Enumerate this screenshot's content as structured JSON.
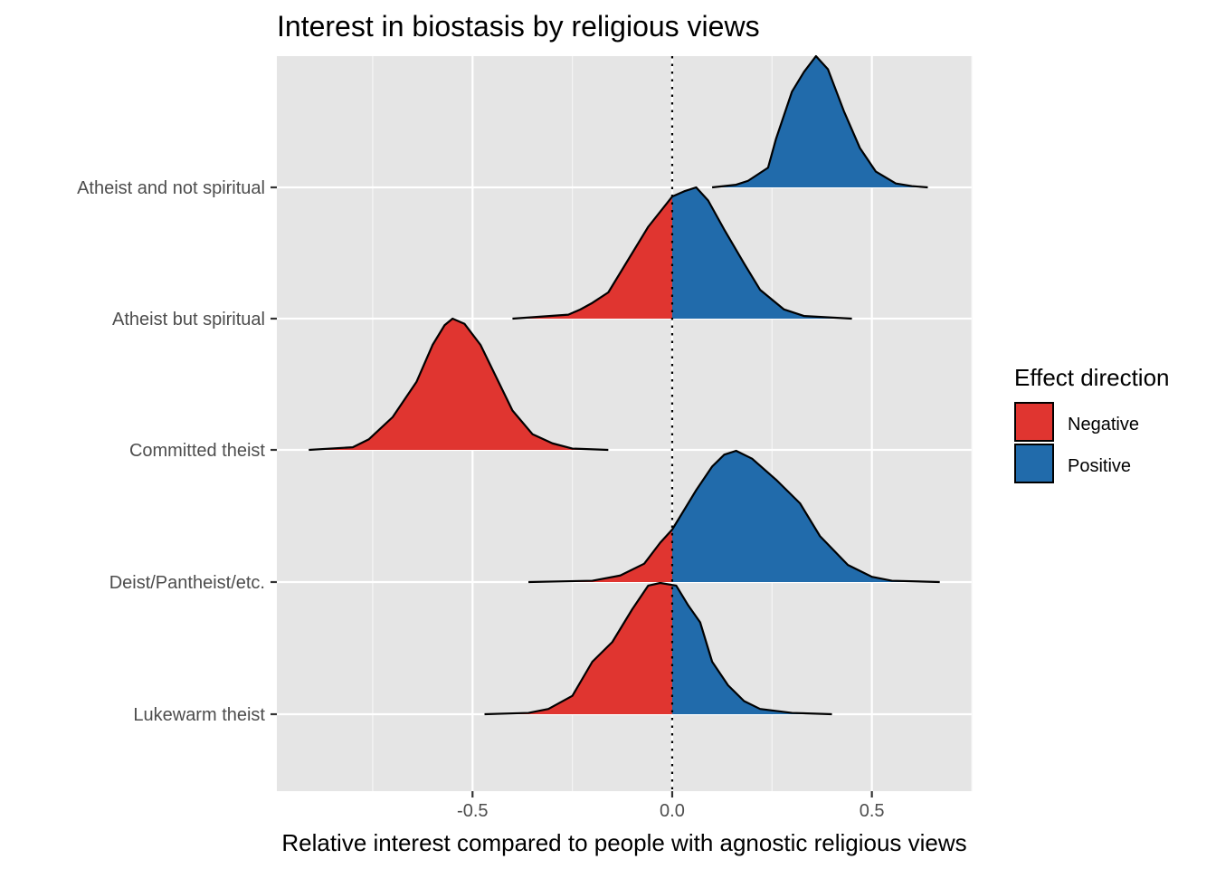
{
  "chart_data": {
    "type": "ridgeline",
    "title": "Interest in biostasis by religious views",
    "xlabel": "Relative interest compared to people with agnostic religious views",
    "ylabel": "",
    "xlim": [
      -0.99,
      0.75
    ],
    "xticks": [
      -0.5,
      0.0,
      0.5
    ],
    "xtick_labels": [
      "-0.5",
      "0.0",
      "0.5"
    ],
    "reference_line": {
      "x": 0.0,
      "style": "dotted"
    },
    "grid": true,
    "legend": {
      "title": "Effect direction",
      "placement": "right",
      "entries": [
        {
          "label": "Negative",
          "color": "#E03530"
        },
        {
          "label": "Positive",
          "color": "#216BAB"
        }
      ]
    },
    "colors": {
      "negative": "#E03530",
      "positive": "#216BAB",
      "panel": "#E5E5E5",
      "grid": "#FFFFFF"
    },
    "series": [
      {
        "name": "Lukewarm theist",
        "curve": [
          [
            -0.47,
            0.0
          ],
          [
            -0.36,
            0.01
          ],
          [
            -0.31,
            0.04
          ],
          [
            -0.25,
            0.14
          ],
          [
            -0.2,
            0.4
          ],
          [
            -0.15,
            0.55
          ],
          [
            -0.1,
            0.8
          ],
          [
            -0.06,
            0.98
          ],
          [
            -0.03,
            1.0
          ],
          [
            0.01,
            0.98
          ],
          [
            0.04,
            0.83
          ],
          [
            0.07,
            0.7
          ],
          [
            0.1,
            0.4
          ],
          [
            0.14,
            0.22
          ],
          [
            0.18,
            0.1
          ],
          [
            0.22,
            0.04
          ],
          [
            0.3,
            0.01
          ],
          [
            0.4,
            0.0
          ]
        ]
      },
      {
        "name": "Deist/Pantheist/etc.",
        "curve": [
          [
            -0.36,
            0.0
          ],
          [
            -0.2,
            0.01
          ],
          [
            -0.13,
            0.05
          ],
          [
            -0.07,
            0.14
          ],
          [
            -0.03,
            0.3
          ],
          [
            0.0,
            0.4
          ],
          [
            0.06,
            0.7
          ],
          [
            0.1,
            0.88
          ],
          [
            0.13,
            0.97
          ],
          [
            0.16,
            1.0
          ],
          [
            0.2,
            0.94
          ],
          [
            0.26,
            0.78
          ],
          [
            0.32,
            0.6
          ],
          [
            0.37,
            0.35
          ],
          [
            0.44,
            0.13
          ],
          [
            0.5,
            0.04
          ],
          [
            0.55,
            0.01
          ],
          [
            0.67,
            0.0
          ]
        ]
      },
      {
        "name": "Committed theist",
        "curve": [
          [
            -0.91,
            0.0
          ],
          [
            -0.8,
            0.02
          ],
          [
            -0.76,
            0.08
          ],
          [
            -0.7,
            0.25
          ],
          [
            -0.64,
            0.52
          ],
          [
            -0.6,
            0.8
          ],
          [
            -0.57,
            0.95
          ],
          [
            -0.55,
            1.0
          ],
          [
            -0.52,
            0.96
          ],
          [
            -0.48,
            0.8
          ],
          [
            -0.44,
            0.55
          ],
          [
            -0.4,
            0.3
          ],
          [
            -0.35,
            0.12
          ],
          [
            -0.3,
            0.05
          ],
          [
            -0.25,
            0.01
          ],
          [
            -0.16,
            0.0
          ]
        ]
      },
      {
        "name": "Atheist but spiritual",
        "curve": [
          [
            -0.4,
            0.0
          ],
          [
            -0.26,
            0.03
          ],
          [
            -0.23,
            0.07
          ],
          [
            -0.2,
            0.12
          ],
          [
            -0.16,
            0.2
          ],
          [
            -0.12,
            0.4
          ],
          [
            -0.06,
            0.7
          ],
          [
            0.0,
            0.93
          ],
          [
            0.03,
            0.97
          ],
          [
            0.06,
            1.0
          ],
          [
            0.09,
            0.9
          ],
          [
            0.13,
            0.68
          ],
          [
            0.18,
            0.42
          ],
          [
            0.22,
            0.22
          ],
          [
            0.28,
            0.07
          ],
          [
            0.33,
            0.02
          ],
          [
            0.45,
            0.0
          ]
        ]
      },
      {
        "name": "Atheist and not spiritual",
        "curve": [
          [
            0.1,
            0.0
          ],
          [
            0.16,
            0.02
          ],
          [
            0.19,
            0.05
          ],
          [
            0.24,
            0.15
          ],
          [
            0.26,
            0.37
          ],
          [
            0.3,
            0.73
          ],
          [
            0.33,
            0.88
          ],
          [
            0.36,
            1.0
          ],
          [
            0.39,
            0.9
          ],
          [
            0.43,
            0.58
          ],
          [
            0.47,
            0.3
          ],
          [
            0.51,
            0.12
          ],
          [
            0.56,
            0.03
          ],
          [
            0.6,
            0.01
          ],
          [
            0.64,
            0.0
          ]
        ]
      }
    ]
  }
}
